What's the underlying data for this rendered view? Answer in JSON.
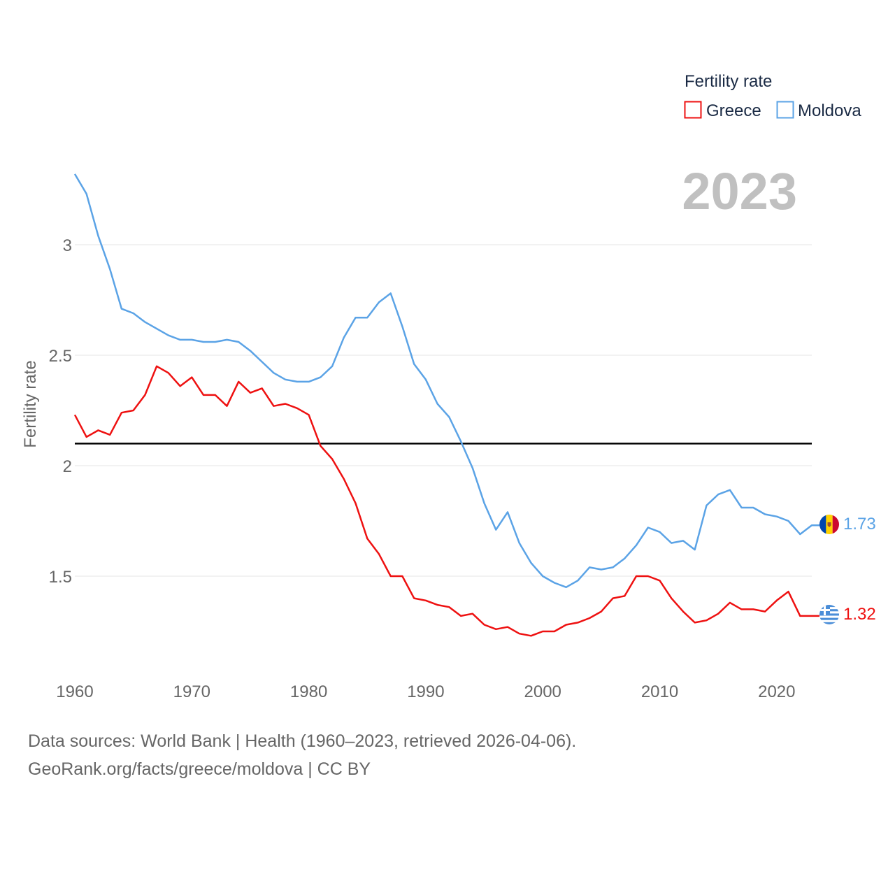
{
  "chart_data": {
    "type": "line",
    "year_label": "2023",
    "ylabel": "Fertility rate",
    "legend": {
      "title": "Fertility rate",
      "position": "top-right"
    },
    "xlim": [
      1960,
      2023
    ],
    "ylim": [
      1.05,
      3.35
    ],
    "x_ticks": [
      1960,
      1970,
      1980,
      1990,
      2000,
      2010,
      2020
    ],
    "y_ticks": [
      1.5,
      2,
      2.5,
      3
    ],
    "y_tick_labels": [
      "1.5",
      "2",
      "2.5",
      "3"
    ],
    "reference_line": {
      "value": 2.1,
      "color": "#000000"
    },
    "x": [
      1960,
      1961,
      1962,
      1963,
      1964,
      1965,
      1966,
      1967,
      1968,
      1969,
      1970,
      1971,
      1972,
      1973,
      1974,
      1975,
      1976,
      1977,
      1978,
      1979,
      1980,
      1981,
      1982,
      1983,
      1984,
      1985,
      1986,
      1987,
      1988,
      1989,
      1990,
      1991,
      1992,
      1993,
      1994,
      1995,
      1996,
      1997,
      1998,
      1999,
      2000,
      2001,
      2002,
      2003,
      2004,
      2005,
      2006,
      2007,
      2008,
      2009,
      2010,
      2011,
      2012,
      2013,
      2014,
      2015,
      2016,
      2017,
      2018,
      2019,
      2020,
      2021,
      2022,
      2023
    ],
    "series": [
      {
        "name": "Greece",
        "color": "#ee1111",
        "end_label": "1.32",
        "flag": "greece-flag-icon",
        "values": [
          2.23,
          2.13,
          2.16,
          2.14,
          2.24,
          2.25,
          2.32,
          2.45,
          2.42,
          2.36,
          2.4,
          2.32,
          2.32,
          2.27,
          2.38,
          2.33,
          2.35,
          2.27,
          2.28,
          2.26,
          2.23,
          2.09,
          2.03,
          1.94,
          1.83,
          1.67,
          1.6,
          1.5,
          1.5,
          1.4,
          1.39,
          1.37,
          1.36,
          1.32,
          1.33,
          1.28,
          1.26,
          1.27,
          1.24,
          1.23,
          1.25,
          1.25,
          1.28,
          1.29,
          1.31,
          1.34,
          1.4,
          1.41,
          1.5,
          1.5,
          1.48,
          1.4,
          1.34,
          1.29,
          1.3,
          1.33,
          1.38,
          1.35,
          1.35,
          1.34,
          1.39,
          1.43,
          1.32,
          1.32
        ]
      },
      {
        "name": "Moldova",
        "color": "#5ba3e6",
        "end_label": "1.73",
        "flag": "moldova-flag-icon",
        "values": [
          3.32,
          3.23,
          3.04,
          2.89,
          2.71,
          2.69,
          2.65,
          2.62,
          2.59,
          2.57,
          2.57,
          2.56,
          2.56,
          2.57,
          2.56,
          2.52,
          2.47,
          2.42,
          2.39,
          2.38,
          2.38,
          2.4,
          2.45,
          2.58,
          2.67,
          2.67,
          2.74,
          2.78,
          2.63,
          2.46,
          2.39,
          2.28,
          2.22,
          2.11,
          1.99,
          1.83,
          1.71,
          1.79,
          1.65,
          1.56,
          1.5,
          1.47,
          1.45,
          1.48,
          1.54,
          1.53,
          1.54,
          1.58,
          1.64,
          1.72,
          1.7,
          1.65,
          1.66,
          1.62,
          1.82,
          1.87,
          1.89,
          1.81,
          1.81,
          1.78,
          1.77,
          1.75,
          1.69,
          1.73
        ]
      }
    ]
  },
  "footer": {
    "line1": "Data sources: World Bank | Health (1960–2023, retrieved 2026-04-06).",
    "line2": "GeoRank.org/facts/greece/moldova | CC BY"
  }
}
